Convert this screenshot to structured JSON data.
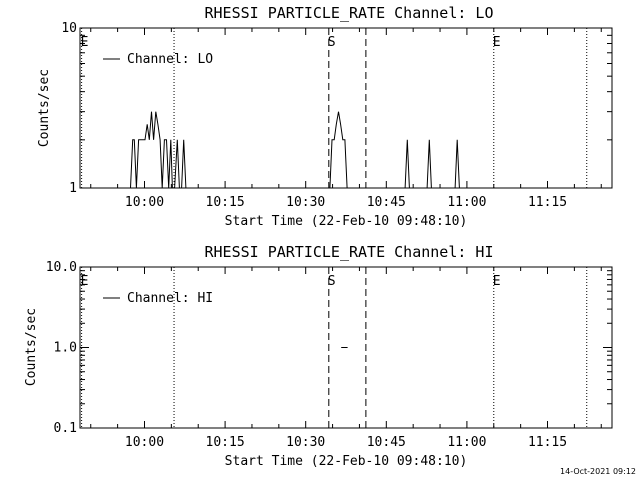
{
  "footer": {
    "timestamp": "14-Oct-2021 09:12"
  },
  "chart_data": [
    {
      "type": "line",
      "title": "RHESSI PARTICLE_RATE Channel: LO",
      "xlabel": "Start Time (22-Feb-10 09:48:10)",
      "ylabel": "Counts/sec",
      "yscale": "log",
      "ylim": [
        1,
        10
      ],
      "xlim_minutes_after_0948": [
        0,
        99
      ],
      "xticks": [
        {
          "m": 12,
          "label": "10:00"
        },
        {
          "m": 27,
          "label": "10:15"
        },
        {
          "m": 42,
          "label": "10:30"
        },
        {
          "m": 57,
          "label": "10:45"
        },
        {
          "m": 72,
          "label": "11:00"
        },
        {
          "m": 87,
          "label": "11:15"
        }
      ],
      "yticks": [
        {
          "v": 1,
          "label": "1"
        },
        {
          "v": 10,
          "label": "10"
        }
      ],
      "legend": {
        "position": "top-left",
        "label": "Channel: LO"
      },
      "markers": [
        {
          "m": 0.3,
          "style": "dotted",
          "letter": "E"
        },
        {
          "m": 17.5,
          "style": "dotted",
          "letter": ""
        },
        {
          "m": 46.3,
          "style": "dashed",
          "letter": "S"
        },
        {
          "m": 53.2,
          "style": "dashed",
          "letter": ""
        },
        {
          "m": 77.0,
          "style": "dotted",
          "letter": "E"
        },
        {
          "m": 94.3,
          "style": "dotted",
          "letter": ""
        }
      ],
      "series": [
        {
          "points": [
            [
              9.4,
              1
            ],
            [
              9.8,
              2
            ],
            [
              10.1,
              2
            ],
            [
              10.5,
              1
            ],
            [
              10.9,
              2
            ],
            [
              11.3,
              2
            ],
            [
              11.7,
              2
            ],
            [
              12.1,
              2
            ],
            [
              12.5,
              2.5
            ],
            [
              12.9,
              2
            ],
            [
              13.3,
              3
            ],
            [
              13.7,
              2
            ],
            [
              14.1,
              3
            ],
            [
              14.5,
              2.5
            ],
            [
              14.9,
              2
            ],
            [
              15.3,
              1
            ],
            [
              15.7,
              2
            ],
            [
              16.1,
              2
            ],
            [
              16.5,
              1
            ],
            [
              16.9,
              2
            ],
            [
              17.2,
              1
            ],
            [
              17.6,
              1
            ],
            [
              18.1,
              2
            ],
            [
              18.5,
              1
            ],
            [
              18.9,
              1
            ],
            [
              19.3,
              2
            ],
            [
              19.7,
              1
            ],
            [
              46.5,
              1
            ],
            [
              46.9,
              2
            ],
            [
              47.3,
              2
            ],
            [
              47.7,
              2.5
            ],
            [
              48.1,
              3
            ],
            [
              48.5,
              2.5
            ],
            [
              48.9,
              2
            ],
            [
              49.3,
              2
            ],
            [
              49.7,
              1
            ],
            [
              60.5,
              1
            ],
            [
              60.9,
              2
            ],
            [
              61.3,
              1
            ],
            [
              64.6,
              1
            ],
            [
              65.0,
              2
            ],
            [
              65.4,
              1
            ],
            [
              69.8,
              1
            ],
            [
              70.2,
              2
            ],
            [
              70.6,
              1
            ]
          ]
        }
      ]
    },
    {
      "type": "line",
      "title": "RHESSI PARTICLE_RATE Channel: HI",
      "xlabel": "Start Time (22-Feb-10 09:48:10)",
      "ylabel": "Counts/sec",
      "yscale": "log",
      "ylim": [
        0.1,
        10
      ],
      "xlim_minutes_after_0948": [
        0,
        99
      ],
      "xticks": [
        {
          "m": 12,
          "label": "10:00"
        },
        {
          "m": 27,
          "label": "10:15"
        },
        {
          "m": 42,
          "label": "10:30"
        },
        {
          "m": 57,
          "label": "10:45"
        },
        {
          "m": 72,
          "label": "11:00"
        },
        {
          "m": 87,
          "label": "11:15"
        }
      ],
      "yticks": [
        {
          "v": 0.1,
          "label": "0.1"
        },
        {
          "v": 1,
          "label": "1.0"
        },
        {
          "v": 10,
          "label": "10.0"
        }
      ],
      "legend": {
        "position": "top-left",
        "label": "Channel: HI"
      },
      "markers": [
        {
          "m": 0.3,
          "style": "dotted",
          "letter": "E"
        },
        {
          "m": 17.5,
          "style": "dotted",
          "letter": ""
        },
        {
          "m": 46.3,
          "style": "dashed",
          "letter": "S"
        },
        {
          "m": 53.2,
          "style": "dashed",
          "letter": ""
        },
        {
          "m": 77.0,
          "style": "dotted",
          "letter": "E"
        },
        {
          "m": 94.3,
          "style": "dotted",
          "letter": ""
        }
      ],
      "series": [
        {
          "points": [
            [
              48.6,
              1
            ],
            [
              49.8,
              1
            ]
          ]
        }
      ]
    }
  ]
}
